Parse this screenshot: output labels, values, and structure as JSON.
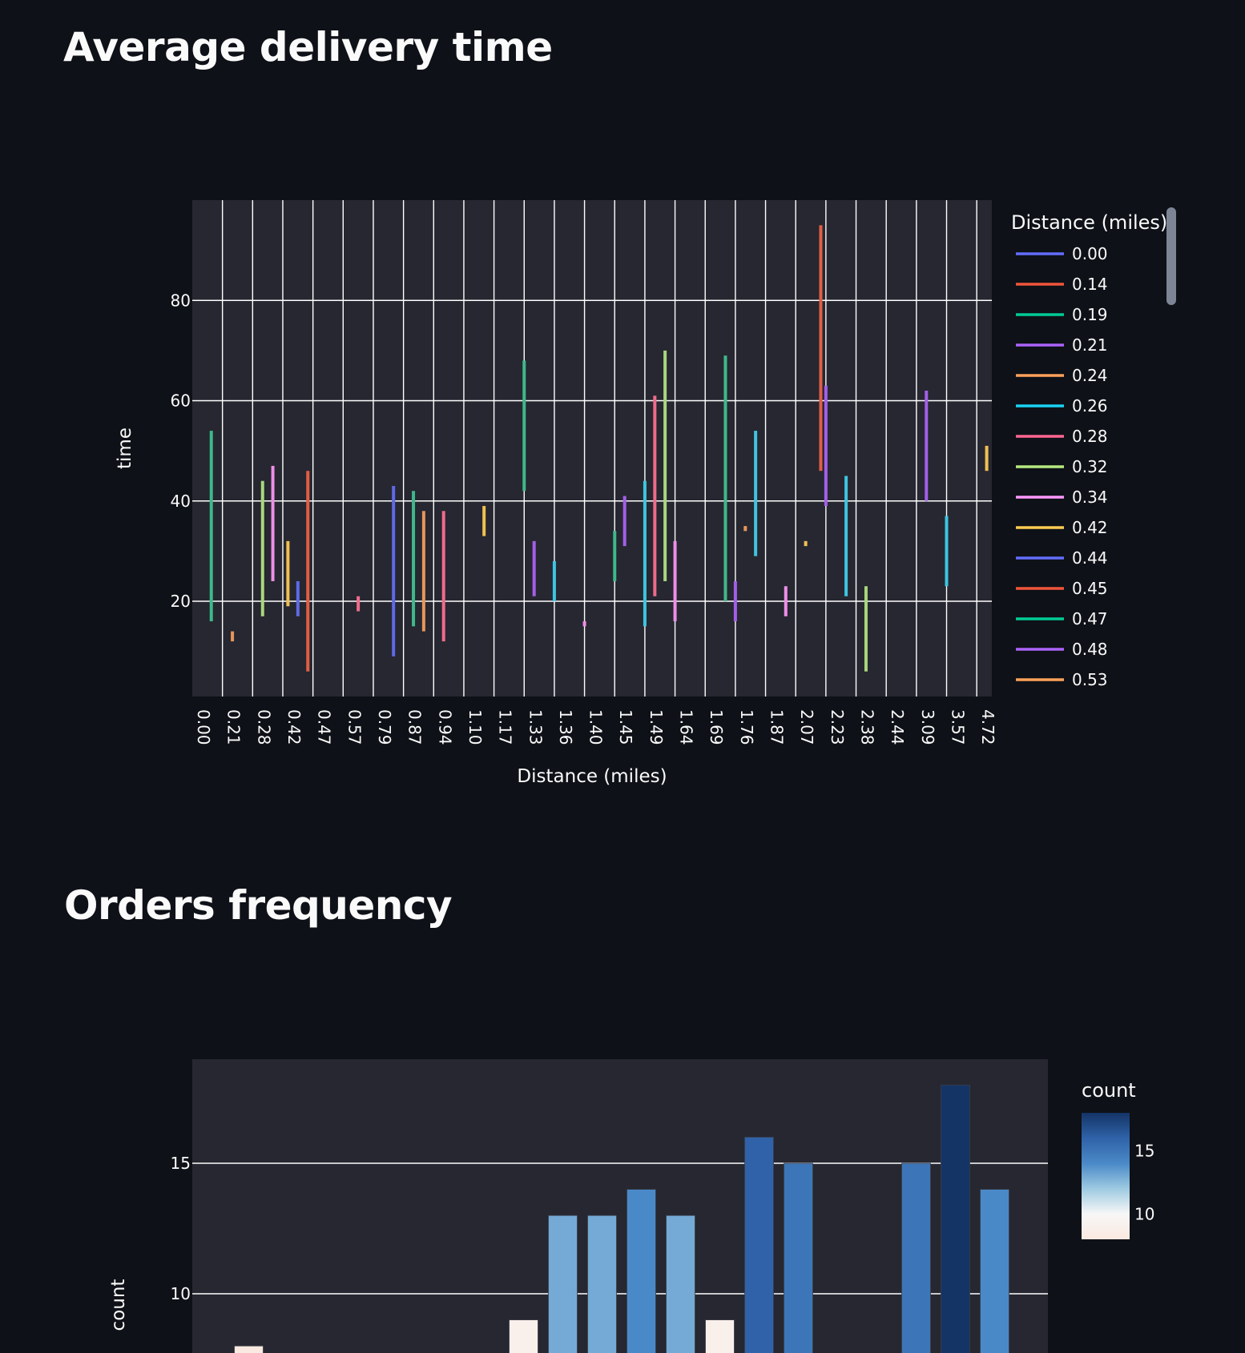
{
  "sections": [
    {
      "title": "Average delivery time"
    },
    {
      "title": "Orders frequency"
    }
  ],
  "chart_data": [
    {
      "type": "bar",
      "subtype": "floating-range",
      "title": "Average delivery time",
      "xlabel": "Distance (miles)",
      "ylabel": "time",
      "categories": [
        "0.00",
        "0.21",
        "0.28",
        "0.42",
        "0.47",
        "0.57",
        "0.79",
        "0.87",
        "0.94",
        "1.10",
        "1.17",
        "1.33",
        "1.36",
        "1.40",
        "1.45",
        "1.49",
        "1.64",
        "1.69",
        "1.76",
        "1.87",
        "2.07",
        "2.23",
        "2.38",
        "2.44",
        "3.09",
        "3.57",
        "4.72"
      ],
      "yticks": [
        20,
        40,
        60,
        80
      ],
      "ylim": [
        1,
        100
      ],
      "grid": true,
      "legend": {
        "title": "Distance (miles)",
        "position": "right",
        "entries": [
          {
            "name": "0.00",
            "color": "#636efa"
          },
          {
            "name": "0.14",
            "color": "#ef553b"
          },
          {
            "name": "0.19",
            "color": "#00cc96"
          },
          {
            "name": "0.21",
            "color": "#ab63fa"
          },
          {
            "name": "0.24",
            "color": "#ffa15a"
          },
          {
            "name": "0.26",
            "color": "#19d3f3"
          },
          {
            "name": "0.28",
            "color": "#ff6692"
          },
          {
            "name": "0.32",
            "color": "#b6e880"
          },
          {
            "name": "0.34",
            "color": "#ff97ff"
          },
          {
            "name": "0.42",
            "color": "#fecb52"
          },
          {
            "name": "0.44",
            "color": "#636efa"
          },
          {
            "name": "0.45",
            "color": "#ef553b"
          },
          {
            "name": "0.47",
            "color": "#00cc96"
          },
          {
            "name": "0.48",
            "color": "#ab63fa"
          },
          {
            "name": "0.53",
            "color": "#ffa15a"
          }
        ]
      },
      "segments": [
        {
          "x": 0.63,
          "low": 16,
          "high": 54,
          "color": "#3fb88a"
        },
        {
          "x": 1.33,
          "low": 12,
          "high": 14,
          "color": "#e8965a"
        },
        {
          "x": 2.33,
          "low": 17,
          "high": 44,
          "color": "#a9d67f"
        },
        {
          "x": 2.67,
          "low": 24,
          "high": 47,
          "color": "#ee8ee8"
        },
        {
          "x": 3.17,
          "low": 19,
          "high": 32,
          "color": "#f0c051"
        },
        {
          "x": 3.5,
          "low": 17,
          "high": 24,
          "color": "#5f6ae6"
        },
        {
          "x": 3.83,
          "low": 6,
          "high": 46,
          "color": "#e05e45"
        },
        {
          "x": 5.5,
          "low": 18,
          "high": 21,
          "color": "#ef6b8c"
        },
        {
          "x": 6.67,
          "low": 9,
          "high": 43,
          "color": "#5f6ae6"
        },
        {
          "x": 7.33,
          "low": 15,
          "high": 42,
          "color": "#3fb88a"
        },
        {
          "x": 7.67,
          "low": 14,
          "high": 38,
          "color": "#e8965a"
        },
        {
          "x": 8.33,
          "low": 12,
          "high": 38,
          "color": "#ef6b8c"
        },
        {
          "x": 9.67,
          "low": 33,
          "high": 39,
          "color": "#f0c051"
        },
        {
          "x": 11,
          "low": 42,
          "high": 68,
          "color": "#3fb88a"
        },
        {
          "x": 11.33,
          "low": 21,
          "high": 32,
          "color": "#a35fe8"
        },
        {
          "x": 12,
          "low": 20,
          "high": 28,
          "color": "#3fc4e0"
        },
        {
          "x": 13,
          "low": 15,
          "high": 16,
          "color": "#ee8ee8"
        },
        {
          "x": 14,
          "low": 24,
          "high": 34,
          "color": "#3fb88a"
        },
        {
          "x": 14.33,
          "low": 31,
          "high": 41,
          "color": "#a35fe8"
        },
        {
          "x": 15,
          "low": 15,
          "high": 44,
          "color": "#3fc4e0"
        },
        {
          "x": 15.33,
          "low": 21,
          "high": 61,
          "color": "#ef6b8c"
        },
        {
          "x": 15.67,
          "low": 24,
          "high": 70,
          "color": "#a9d67f"
        },
        {
          "x": 16,
          "low": 16,
          "high": 32,
          "color": "#ee8ee8"
        },
        {
          "x": 17.67,
          "low": 20,
          "high": 69,
          "color": "#3fb88a"
        },
        {
          "x": 18,
          "low": 16,
          "high": 24,
          "color": "#a35fe8"
        },
        {
          "x": 18.33,
          "low": 34,
          "high": 35,
          "color": "#e8965a"
        },
        {
          "x": 18.67,
          "low": 29,
          "high": 54,
          "color": "#3fc4e0"
        },
        {
          "x": 19.67,
          "low": 17,
          "high": 23,
          "color": "#ee8ee8"
        },
        {
          "x": 20.33,
          "low": 31,
          "high": 32,
          "color": "#f0c051"
        },
        {
          "x": 20.83,
          "low": 46,
          "high": 95,
          "color": "#e05e45"
        },
        {
          "x": 21,
          "low": 39,
          "high": 63,
          "color": "#a35fe8"
        },
        {
          "x": 21.67,
          "low": 21,
          "high": 45,
          "color": "#3fc4e0"
        },
        {
          "x": 22.33,
          "low": 6,
          "high": 23,
          "color": "#a9d67f"
        },
        {
          "x": 24.33,
          "low": 40,
          "high": 62,
          "color": "#a35fe8"
        },
        {
          "x": 25,
          "low": 23,
          "high": 37,
          "color": "#3fc4e0"
        },
        {
          "x": 26.33,
          "low": 46,
          "high": 51,
          "color": "#f0c051"
        }
      ]
    },
    {
      "type": "bar",
      "title": "Orders frequency",
      "ylabel": "count",
      "yticks": [
        10,
        15
      ],
      "ylim": [
        0,
        19.3
      ],
      "grid": true,
      "values": [
        8,
        null,
        null,
        null,
        null,
        null,
        null,
        9,
        13,
        13,
        14,
        13,
        9,
        16,
        15,
        null,
        null,
        15,
        18,
        14
      ],
      "colorbar": {
        "title": "count",
        "ticks": [
          10,
          15
        ],
        "range": [
          8,
          18
        ],
        "colors": [
          "#fae9e0",
          "#f7f7f7",
          "#9ecae1",
          "#4a89c8",
          "#2f62a8",
          "#143466"
        ]
      }
    }
  ]
}
